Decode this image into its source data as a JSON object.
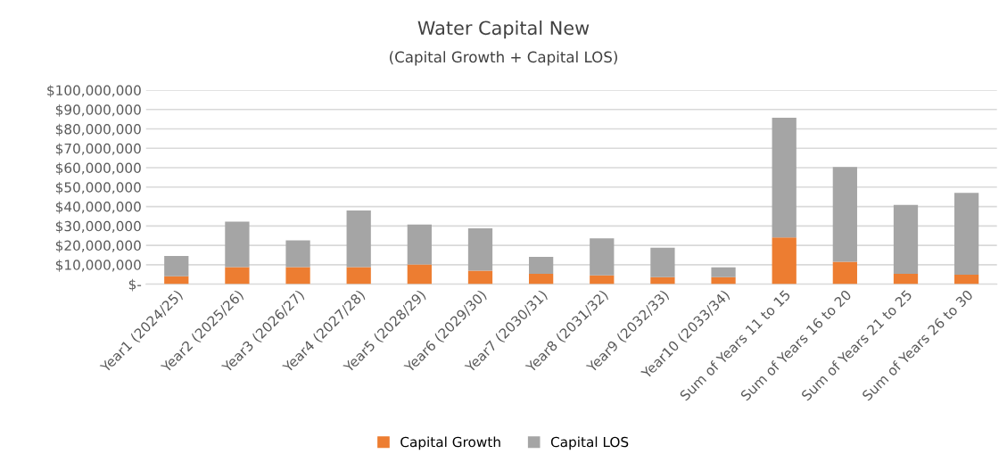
{
  "chart_data": {
    "type": "bar",
    "title": "Water Capital New",
    "subtitle": "(Capital Growth + Capital LOS)",
    "categories": [
      "Year1 (2024/25)",
      "Year2 (2025/26)",
      "Year3 (2026/27)",
      "Year4 (2027/28)",
      "Year5 (2028/29)",
      "Year6 (2029/30)",
      "Year7 (2030/31)",
      "Year8 (2031/32)",
      "Year9 (2032/33)",
      "Year10 (2033/34)",
      "Sum of Years 11 to 15",
      "Sum of Years 16 to 20",
      "Sum of Years 21 to 25",
      "Sum of Years 26 to 30"
    ],
    "stacked": true,
    "series": [
      {
        "name": "Capital Growth",
        "color": "#ed7d31",
        "values": [
          4100000,
          8800000,
          8800000,
          8800000,
          10200000,
          6900000,
          5300000,
          4500000,
          3600000,
          3600000,
          24000000,
          11500000,
          5300000,
          4900000
        ]
      },
      {
        "name": "Capital LOS",
        "color": "#a5a5a5",
        "values": [
          10400000,
          23400000,
          13800000,
          29100000,
          20500000,
          21900000,
          8700000,
          19100000,
          15200000,
          5000000,
          61700000,
          48900000,
          35500000,
          42100000
        ]
      }
    ],
    "ylim": [
      0,
      100000000
    ],
    "yticks": [
      {
        "value": 0,
        "label": "$-"
      },
      {
        "value": 10000000,
        "label": "$10,000,000"
      },
      {
        "value": 20000000,
        "label": "$20,000,000"
      },
      {
        "value": 30000000,
        "label": "$30,000,000"
      },
      {
        "value": 40000000,
        "label": "$40,000,000"
      },
      {
        "value": 50000000,
        "label": "$50,000,000"
      },
      {
        "value": 60000000,
        "label": "$60,000,000"
      },
      {
        "value": 70000000,
        "label": "$70,000,000"
      },
      {
        "value": 80000000,
        "label": "$80,000,000"
      },
      {
        "value": 90000000,
        "label": "$90,000,000"
      },
      {
        "value": 100000000,
        "label": "$100,000,000"
      }
    ],
    "grid": "y",
    "legend": "bottom"
  }
}
